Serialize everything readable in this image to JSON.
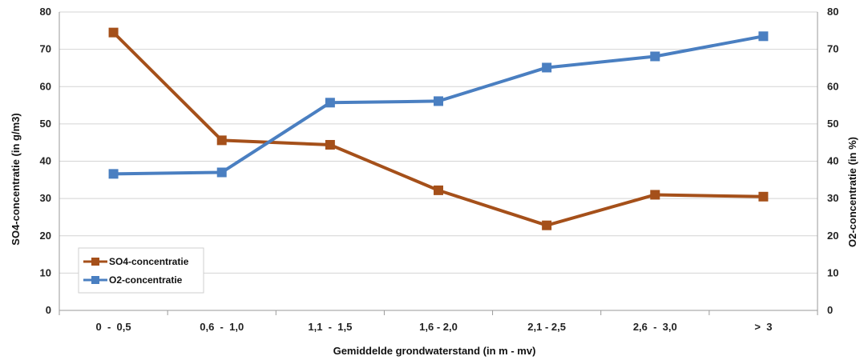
{
  "chart_data": {
    "type": "line",
    "title": "",
    "xlabel": "Gemiddelde grondwaterstand (in m - mv)",
    "ylabel": "SO4-concentratie (in g/m3)",
    "y2label": "O2-concentratie (in %)",
    "categories": [
      "0  -  0,5",
      "0,6  -  1,0",
      "1,1  -  1,5",
      "1,6 - 2,0",
      "2,1 - 2,5",
      "2,6  -  3,0",
      ">  3"
    ],
    "ylim": [
      0,
      80
    ],
    "y2lim": [
      0,
      80
    ],
    "yticks": [
      "0",
      "10",
      "20",
      "30",
      "40",
      "50",
      "60",
      "70",
      "80"
    ],
    "y2ticks": [
      "0",
      "10",
      "20",
      "30",
      "40",
      "50",
      "60",
      "70",
      "80"
    ],
    "grid": true,
    "legend_position": "bottom-left",
    "series": [
      {
        "name": "SO4-concentratie",
        "axis": "left",
        "color": "#A5501A",
        "values": [
          74.5,
          45.6,
          44.4,
          32.2,
          22.8,
          31.0,
          30.5
        ]
      },
      {
        "name": "O2-concentratie",
        "axis": "right",
        "color": "#4A7FC1",
        "values": [
          36.6,
          37.0,
          55.7,
          56.1,
          65.1,
          68.1,
          73.5
        ]
      }
    ]
  }
}
